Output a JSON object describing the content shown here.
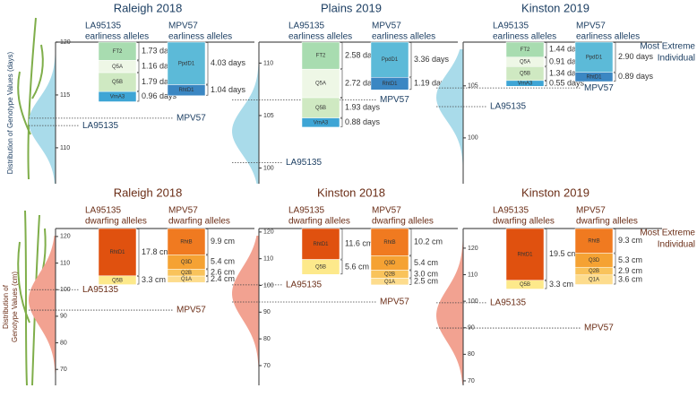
{
  "rows": [
    {
      "axis_title": [
        "Distribution of Genotype Values (days)"
      ],
      "extreme_label": [
        "Most Extreme",
        "Individual"
      ],
      "text_color": "#1d3f63",
      "curve_color": "#a9dbea",
      "panels": [
        {
          "title": "Raleigh 2018",
          "ylim": [
            106.6,
            120
          ],
          "yticks": [
            120,
            115,
            110
          ],
          "columns": [
            {
              "header": [
                "LA95135",
                "earliness alleles"
              ],
              "segments": [
                {
                  "name": "FT2",
                  "value": 1.73,
                  "value_label": "1.73 days",
                  "color": "#a8dcb0"
                },
                {
                  "name": "Q5A",
                  "value": 1.16,
                  "value_label": "1.16 days",
                  "color": "#eef7e6"
                },
                {
                  "name": "Q5B",
                  "value": 1.79,
                  "value_label": "1.79 days",
                  "color": "#cfe9c2"
                },
                {
                  "name": "VrnA3",
                  "value": 0.96,
                  "value_label": "0.96 days",
                  "color": "#3ea5d5"
                }
              ]
            },
            {
              "header": [
                "MPV57",
                "earliness alleles"
              ],
              "segments": [
                {
                  "name": "PpdD1",
                  "value": 4.03,
                  "value_label": "4.03 days",
                  "color": "#5cbad8"
                },
                {
                  "name": "RhtD1",
                  "value": 1.04,
                  "value_label": "1.04 days",
                  "color": "#3b87c3"
                }
              ]
            }
          ],
          "markers": [
            {
              "name": "MPV57",
              "value": 112.8
            },
            {
              "name": "LA95135",
              "value": 112.1
            }
          ]
        },
        {
          "title": "Plains 2019",
          "ylim": [
            98.5,
            112
          ],
          "yticks": [
            110,
            105,
            100
          ],
          "columns": [
            {
              "header": [
                "LA95135",
                "earliness alleles"
              ],
              "segments": [
                {
                  "name": "FT2",
                  "value": 2.58,
                  "value_label": "2.58 days",
                  "color": "#a8dcb0"
                },
                {
                  "name": "Q5A",
                  "value": 2.72,
                  "value_label": "2.72 days",
                  "color": "#eef7e6"
                },
                {
                  "name": "Q5B",
                  "value": 1.93,
                  "value_label": "1.93 days",
                  "color": "#cfe9c2"
                },
                {
                  "name": "VrnA3",
                  "value": 0.88,
                  "value_label": "0.88 days",
                  "color": "#3ea5d5"
                }
              ]
            },
            {
              "header": [
                "MPV57",
                "earliness alleles"
              ],
              "segments": [
                {
                  "name": "PpdD1",
                  "value": 3.36,
                  "value_label": "3.36 days",
                  "color": "#5cbad8"
                },
                {
                  "name": "RhtD1",
                  "value": 1.19,
                  "value_label": "1.19 days",
                  "color": "#3b87c3"
                }
              ]
            }
          ],
          "markers": [
            {
              "name": "MPV57",
              "value": 106.5
            },
            {
              "name": "LA95135",
              "value": 100.5
            }
          ]
        },
        {
          "title": "Kinston 2019",
          "ylim": [
            95.6,
            109.2
          ],
          "yticks": [
            105,
            100
          ],
          "columns": [
            {
              "header": [
                "LA95135",
                "earliness alleles"
              ],
              "segments": [
                {
                  "name": "FT2",
                  "value": 1.44,
                  "value_label": "1.44 days",
                  "color": "#a8dcb0"
                },
                {
                  "name": "Q5A",
                  "value": 0.91,
                  "value_label": "0.91 days",
                  "color": "#eef7e6"
                },
                {
                  "name": "Q5B",
                  "value": 1.34,
                  "value_label": "1.34 days",
                  "color": "#cfe9c2"
                },
                {
                  "name": "VrnA3",
                  "value": 0.55,
                  "value_label": "0.55 days",
                  "color": "#3ea5d5"
                }
              ]
            },
            {
              "header": [
                "MPV57",
                "earliness alleles"
              ],
              "segments": [
                {
                  "name": "PpdD1",
                  "value": 2.9,
                  "value_label": "2.90 days",
                  "color": "#5cbad8"
                },
                {
                  "name": "RhtD1",
                  "value": 0.89,
                  "value_label": "0.89 days",
                  "color": "#3b87c3"
                }
              ]
            }
          ],
          "markers": [
            {
              "name": "MPV57",
              "value": 104.8
            },
            {
              "name": "LA95135",
              "value": 103.0
            }
          ]
        }
      ]
    },
    {
      "axis_title": [
        "Distribution of",
        "Genotype Values (cm)"
      ],
      "extreme_label": [
        "Most Extreme",
        "Individual"
      ],
      "text_color": "#6b2e17",
      "curve_color": "#f2a291",
      "panels": [
        {
          "title": "Raleigh 2018",
          "ylim": [
            64,
            123
          ],
          "yticks": [
            120,
            110,
            100,
            90,
            80,
            70
          ],
          "columns": [
            {
              "header": [
                "LA95135",
                "dwarfing alleles"
              ],
              "segments": [
                {
                  "name": "RhtD1",
                  "value": 17.8,
                  "value_label": "17.8 cm",
                  "color": "#e0510f"
                },
                {
                  "name": "Q5B",
                  "value": 3.3,
                  "value_label": "3.3 cm",
                  "color": "#fde98b"
                }
              ]
            },
            {
              "header": [
                "MPV57",
                "dwarfing alleles"
              ],
              "segments": [
                {
                  "name": "RhtB",
                  "value": 9.9,
                  "value_label": "9.9 cm",
                  "color": "#f07a20"
                },
                {
                  "name": "Q3D",
                  "value": 5.4,
                  "value_label": "5.4 cm",
                  "color": "#f5a233"
                },
                {
                  "name": "Q2B",
                  "value": 2.6,
                  "value_label": "2.6 cm",
                  "color": "#f9c35b"
                },
                {
                  "name": "Q1A",
                  "value": 2.4,
                  "value_label": "2.4 cm",
                  "color": "#fddc8d"
                }
              ]
            }
          ],
          "markers": [
            {
              "name": "LA95135",
              "value": 100.0
            },
            {
              "name": "MPV57",
              "value": 92.3
            }
          ]
        },
        {
          "title": "Kinston 2018",
          "ylim": [
            62.6,
            121.3
          ],
          "yticks": [
            120,
            110,
            100,
            90,
            80,
            70
          ],
          "columns": [
            {
              "header": [
                "LA95135",
                "dwarfing alleles"
              ],
              "segments": [
                {
                  "name": "RhtD1",
                  "value": 11.6,
                  "value_label": "11.6 cm",
                  "color": "#e0510f"
                },
                {
                  "name": "Q5B",
                  "value": 5.6,
                  "value_label": "5.6 cm",
                  "color": "#fde98b"
                }
              ]
            },
            {
              "header": [
                "MPV57",
                "dwarfing alleles"
              ],
              "segments": [
                {
                  "name": "RhtB",
                  "value": 10.2,
                  "value_label": "10.2 cm",
                  "color": "#f07a20"
                },
                {
                  "name": "Q3D",
                  "value": 5.4,
                  "value_label": "5.4 cm",
                  "color": "#f5a233"
                },
                {
                  "name": "Q2B",
                  "value": 3.0,
                  "value_label": "3.0 cm",
                  "color": "#f9c35b"
                },
                {
                  "name": "Q1A",
                  "value": 2.5,
                  "value_label": "2.5 cm",
                  "color": "#fddc8d"
                }
              ]
            }
          ],
          "markers": [
            {
              "name": "LA95135",
              "value": 100.2
            },
            {
              "name": "MPV57",
              "value": 93.8
            }
          ]
        },
        {
          "title": "Kinston 2019",
          "ylim": [
            68.3,
            127.4
          ],
          "yticks": [
            120,
            110,
            100,
            90,
            80,
            70
          ],
          "columns": [
            {
              "header": [
                "LA95135",
                "dwarfing alleles"
              ],
              "segments": [
                {
                  "name": "RhtD1",
                  "value": 19.5,
                  "value_label": "19.5 cm",
                  "color": "#e0510f"
                },
                {
                  "name": "Q5B",
                  "value": 3.3,
                  "value_label": "3.3 cm",
                  "color": "#fde98b"
                }
              ]
            },
            {
              "header": [
                "MPV57",
                "dwarfing alleles"
              ],
              "segments": [
                {
                  "name": "RhtB",
                  "value": 9.3,
                  "value_label": "9.3 cm",
                  "color": "#f07a20"
                },
                {
                  "name": "Q3D",
                  "value": 5.3,
                  "value_label": "5.3 cm",
                  "color": "#f5a233"
                },
                {
                  "name": "Q2B",
                  "value": 2.9,
                  "value_label": "2.9 cm",
                  "color": "#f9c35b"
                },
                {
                  "name": "Q1A",
                  "value": 3.6,
                  "value_label": "3.6 cm",
                  "color": "#fddc8d"
                }
              ]
            }
          ],
          "markers": [
            {
              "name": "LA95135",
              "value": 99.4
            },
            {
              "name": "MPV57",
              "value": 89.9
            }
          ]
        }
      ]
    }
  ]
}
